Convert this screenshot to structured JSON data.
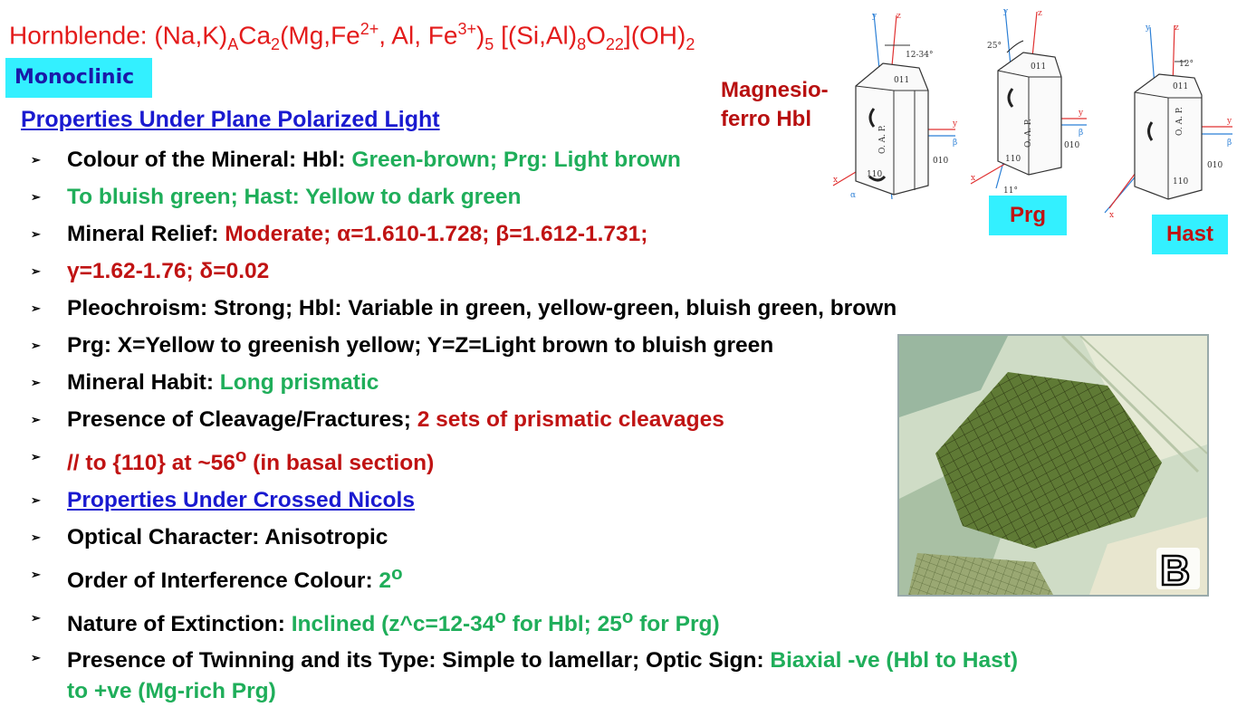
{
  "title": {
    "hornblende_prefix": "Hornblende: (Na,K)",
    "sub_A": "A",
    "ca": "Ca",
    "sub_2a": "2",
    "mg_fe": "(Mg,Fe",
    "sup_2plus": "2+",
    "al_fe": ", Al, Fe",
    "sup_3plus": "3+",
    "close5": ")",
    "sub_5": "5",
    "si_al": " [(Si,Al)",
    "sub_8": "8",
    "o": "O",
    "sub_22": "22",
    "oh": "](OH)",
    "sub_2b": "2"
  },
  "monoclinic_label": "Monoclinic",
  "section_heading": "Properties Under Plane Polarized Light",
  "bullet_symbol": "➢",
  "bullets": {
    "b1_label": "Colour of the Mineral: Hbl: ",
    "b1_value": "Green-brown; Prg: Light brown",
    "b2_value": "To bluish green; Hast: Yellow to dark green",
    "b3_label": "Mineral Relief: ",
    "b3_value": "Moderate; α=1.610-1.728; β=1.612-1.731;",
    "b4_value": "γ=1.62-1.76; δ=0.02",
    "b5_text": "Pleochroism: Strong; Hbl: Variable in green, yellow-green, bluish green, brown",
    "b6_text": "Prg: X=Yellow to greenish yellow; Y=Z=Light brown to bluish green",
    "b7_label": "Mineral Habit: ",
    "b7_value": "Long prismatic",
    "b8_label": "Presence of Cleavage/Fractures; ",
    "b8_value": "2 sets of prismatic cleavages",
    "b9_a": "// to  {110} at ~56",
    "b9_sup": "o",
    "b9_b": " (in basal section)",
    "b10_link": "Properties Under Crossed Nicols",
    "b11_text": "Optical Character: Anisotropic",
    "b12_label": "Order of Interference Colour: ",
    "b12_value": "2",
    "b12_sup": "o",
    "b13_label": "Nature of Extinction: ",
    "b13_value_a": "Inclined (z^c=12-34",
    "b13_sup1": "o",
    "b13_value_b": " for Hbl; 25",
    "b13_sup2": "o",
    "b13_value_c": " for Prg)",
    "b14_label": "Presence of Twinning and its Type: Simple to lamellar; Optic Sign: ",
    "b14_value": "Biaxial -ve (Hbl to Hast)",
    "b14_value2": "to +ve (Mg-rich Prg)"
  },
  "diagram": {
    "mag_line1": "Magnesio-",
    "mag_line2": "ferro Hbl",
    "prg_label": "Prg",
    "hast_label": "Hast",
    "angle_hbl": "12-34°",
    "angle_prg": "25°",
    "angle_prg2": "11°",
    "angle_hast": "12°",
    "face_011": "011",
    "face_010": "010",
    "face_110": "110",
    "oap": "O. A. P.",
    "axis_y": "y",
    "axis_z": "z",
    "axis_x": "x",
    "axis_beta": "β",
    "axis_alpha": "α"
  },
  "photo_label": "B",
  "colors": {
    "title_red": "#e31b1b",
    "value_green": "#1fae5a",
    "value_red": "#c01313",
    "link_blue": "#1a1ad0",
    "badge_cyan": "#33f0ff"
  }
}
